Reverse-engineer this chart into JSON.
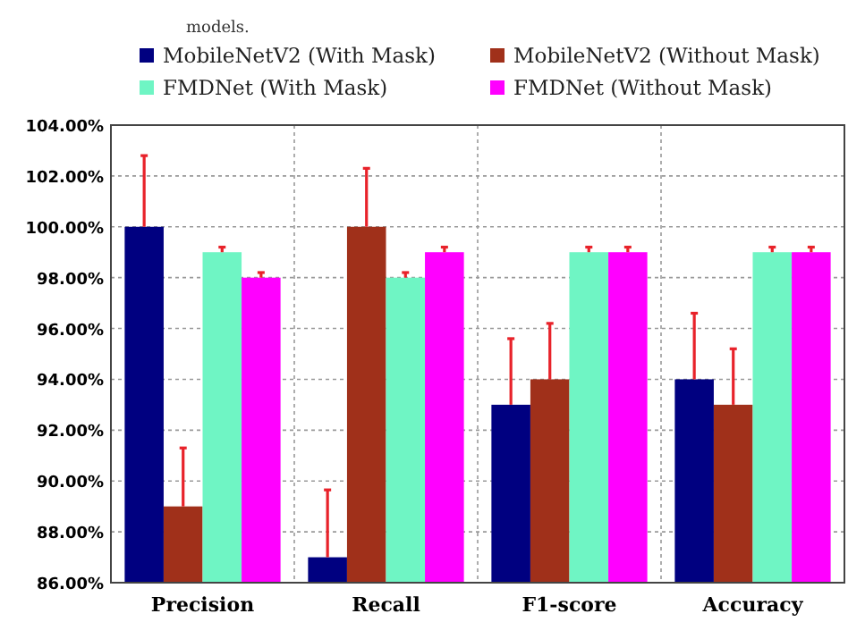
{
  "chart_data": {
    "type": "bar",
    "categories": [
      "Precision",
      "Recall",
      "F1-score",
      "Accuracy"
    ],
    "series": [
      {
        "name": "MobileNetV2 (With Mask)",
        "color": "#000080",
        "values": [
          100,
          87,
          93,
          94
        ],
        "errors": [
          [
            100,
            102.8
          ],
          [
            87,
            89.65
          ],
          [
            93,
            95.6
          ],
          [
            94,
            96.6
          ]
        ]
      },
      {
        "name": "MobileNetV2 (Without Mask)",
        "color": "#a0301a",
        "values": [
          89,
          100,
          94,
          93
        ],
        "errors": [
          [
            89,
            91.3
          ],
          [
            100,
            102.3
          ],
          [
            94,
            96.2
          ],
          [
            93,
            95.2
          ]
        ]
      },
      {
        "name": "FMDNet (With Mask)",
        "color": "#6ff5c4",
        "values": [
          99,
          98,
          99,
          99
        ],
        "errors": [
          [
            99,
            99.2
          ],
          [
            98,
            98.2
          ],
          [
            99,
            99.2
          ],
          [
            99,
            99.2
          ]
        ]
      },
      {
        "name": "FMDNet (Without Mask)",
        "color": "#ff00ff",
        "values": [
          98,
          99,
          99,
          99
        ],
        "errors": [
          [
            98,
            98.2
          ],
          [
            99,
            99.2
          ],
          [
            99,
            99.2
          ],
          [
            99,
            99.2
          ]
        ]
      }
    ],
    "ylim": [
      86,
      104
    ],
    "yticks": [
      {
        "value": 86,
        "label": "86.00%"
      },
      {
        "value": 88,
        "label": "88.00%"
      },
      {
        "value": 90,
        "label": "90.00%"
      },
      {
        "value": 92,
        "label": "92.00%"
      },
      {
        "value": 94,
        "label": "94.00%"
      },
      {
        "value": 96,
        "label": "96.00%"
      },
      {
        "value": 98,
        "label": "98.00%"
      },
      {
        "value": 100,
        "label": "100.00%"
      },
      {
        "value": 102,
        "label": "102.00%"
      },
      {
        "value": 104,
        "label": "104.00%"
      }
    ],
    "grid": true,
    "legend": "top",
    "annotations": [
      "models."
    ]
  }
}
